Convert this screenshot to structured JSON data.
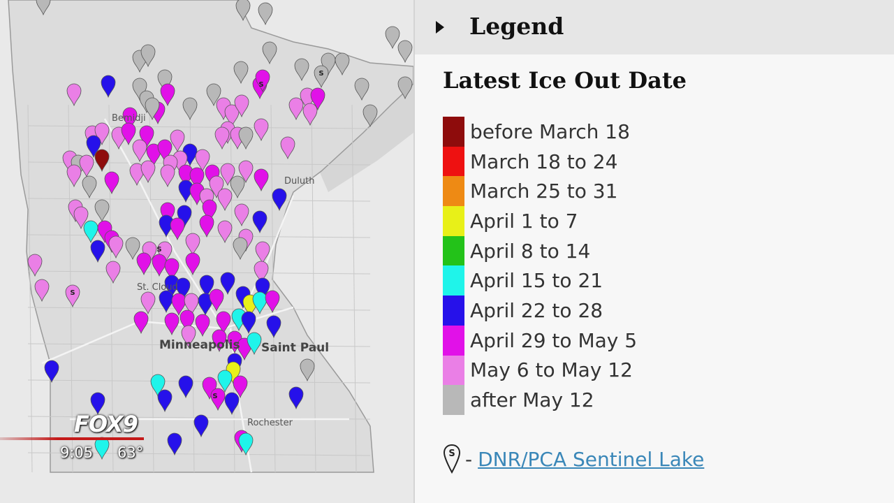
{
  "map": {
    "cities": {
      "bemidji": "Bemidji",
      "duluth": "Duluth",
      "minneapolis": "Minneapolis",
      "saint_paul": "Saint Paul",
      "rochester": "Rochester",
      "st_cloud": "St. Cloud"
    },
    "sentinel_marker_letter": "S",
    "category_colors": {
      "before_mar18": "#8e0c0c",
      "mar18_24": "#ee1111",
      "mar25_31": "#ee8a14",
      "apr1_7": "#e8f018",
      "apr8_14": "#23c219",
      "apr15_21": "#1ff4ea",
      "apr22_28": "#2611ea",
      "apr29_may5": "#e111e8",
      "may6_12": "#ea7fe6",
      "after_may12": "#b8b8b8"
    }
  },
  "tv": {
    "logo": "FOX9",
    "time": "9:05",
    "temperature": "63°"
  },
  "legend": {
    "header": "Legend",
    "title": "Latest Ice Out Date",
    "items": [
      {
        "label": "before March 18",
        "color": "#8e0c0c"
      },
      {
        "label": "March 18 to 24",
        "color": "#ee1111"
      },
      {
        "label": "March 25 to 31",
        "color": "#ee8a14"
      },
      {
        "label": "April 1 to 7",
        "color": "#e8f018"
      },
      {
        "label": "April 8 to 14",
        "color": "#23c219"
      },
      {
        "label": "April 15 to 21",
        "color": "#1ff4ea"
      },
      {
        "label": "April 22 to 28",
        "color": "#2611ea"
      },
      {
        "label": "April 29 to May 5",
        "color": "#e111e8"
      },
      {
        "label": "May 6 to May 12",
        "color": "#ea7fe6"
      },
      {
        "label": "after May 12",
        "color": "#b8b8b8"
      }
    ],
    "sentinel_prefix": "-",
    "sentinel_link": "DNR/PCA Sentinel Lake"
  }
}
